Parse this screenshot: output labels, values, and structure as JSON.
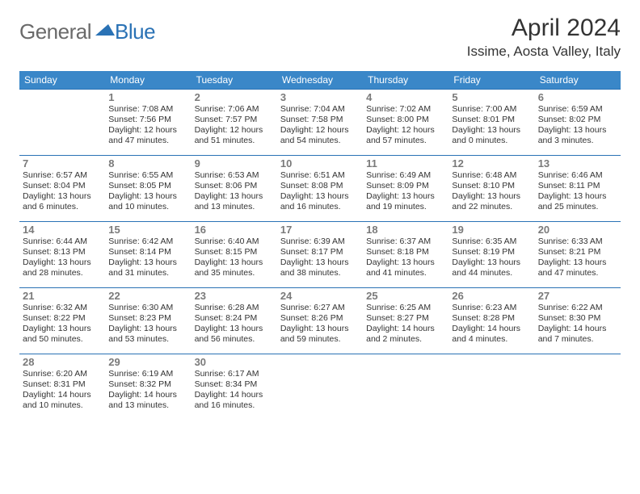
{
  "brand": {
    "part1": "General",
    "part2": "Blue"
  },
  "title": "April 2024",
  "location": "Issime, Aosta Valley, Italy",
  "colors": {
    "header_bg": "#3a87c8",
    "header_text": "#ffffff",
    "rule": "#2a72b5",
    "daynum": "#7a7a7a",
    "body_text": "#333333",
    "logo_gray": "#6a6a6a",
    "logo_blue": "#2a72b5",
    "page_bg": "#ffffff"
  },
  "typography": {
    "title_fontsize": 30,
    "location_fontsize": 17,
    "dayhead_fontsize": 12,
    "daynum_fontsize": 13,
    "cell_fontsize": 10.5
  },
  "day_headers": [
    "Sunday",
    "Monday",
    "Tuesday",
    "Wednesday",
    "Thursday",
    "Friday",
    "Saturday"
  ],
  "weeks": [
    [
      {
        "n": "",
        "sr": "",
        "ss": "",
        "dl": ""
      },
      {
        "n": "1",
        "sr": "7:08 AM",
        "ss": "7:56 PM",
        "dl": "12 hours and 47 minutes."
      },
      {
        "n": "2",
        "sr": "7:06 AM",
        "ss": "7:57 PM",
        "dl": "12 hours and 51 minutes."
      },
      {
        "n": "3",
        "sr": "7:04 AM",
        "ss": "7:58 PM",
        "dl": "12 hours and 54 minutes."
      },
      {
        "n": "4",
        "sr": "7:02 AM",
        "ss": "8:00 PM",
        "dl": "12 hours and 57 minutes."
      },
      {
        "n": "5",
        "sr": "7:00 AM",
        "ss": "8:01 PM",
        "dl": "13 hours and 0 minutes."
      },
      {
        "n": "6",
        "sr": "6:59 AM",
        "ss": "8:02 PM",
        "dl": "13 hours and 3 minutes."
      }
    ],
    [
      {
        "n": "7",
        "sr": "6:57 AM",
        "ss": "8:04 PM",
        "dl": "13 hours and 6 minutes."
      },
      {
        "n": "8",
        "sr": "6:55 AM",
        "ss": "8:05 PM",
        "dl": "13 hours and 10 minutes."
      },
      {
        "n": "9",
        "sr": "6:53 AM",
        "ss": "8:06 PM",
        "dl": "13 hours and 13 minutes."
      },
      {
        "n": "10",
        "sr": "6:51 AM",
        "ss": "8:08 PM",
        "dl": "13 hours and 16 minutes."
      },
      {
        "n": "11",
        "sr": "6:49 AM",
        "ss": "8:09 PM",
        "dl": "13 hours and 19 minutes."
      },
      {
        "n": "12",
        "sr": "6:48 AM",
        "ss": "8:10 PM",
        "dl": "13 hours and 22 minutes."
      },
      {
        "n": "13",
        "sr": "6:46 AM",
        "ss": "8:11 PM",
        "dl": "13 hours and 25 minutes."
      }
    ],
    [
      {
        "n": "14",
        "sr": "6:44 AM",
        "ss": "8:13 PM",
        "dl": "13 hours and 28 minutes."
      },
      {
        "n": "15",
        "sr": "6:42 AM",
        "ss": "8:14 PM",
        "dl": "13 hours and 31 minutes."
      },
      {
        "n": "16",
        "sr": "6:40 AM",
        "ss": "8:15 PM",
        "dl": "13 hours and 35 minutes."
      },
      {
        "n": "17",
        "sr": "6:39 AM",
        "ss": "8:17 PM",
        "dl": "13 hours and 38 minutes."
      },
      {
        "n": "18",
        "sr": "6:37 AM",
        "ss": "8:18 PM",
        "dl": "13 hours and 41 minutes."
      },
      {
        "n": "19",
        "sr": "6:35 AM",
        "ss": "8:19 PM",
        "dl": "13 hours and 44 minutes."
      },
      {
        "n": "20",
        "sr": "6:33 AM",
        "ss": "8:21 PM",
        "dl": "13 hours and 47 minutes."
      }
    ],
    [
      {
        "n": "21",
        "sr": "6:32 AM",
        "ss": "8:22 PM",
        "dl": "13 hours and 50 minutes."
      },
      {
        "n": "22",
        "sr": "6:30 AM",
        "ss": "8:23 PM",
        "dl": "13 hours and 53 minutes."
      },
      {
        "n": "23",
        "sr": "6:28 AM",
        "ss": "8:24 PM",
        "dl": "13 hours and 56 minutes."
      },
      {
        "n": "24",
        "sr": "6:27 AM",
        "ss": "8:26 PM",
        "dl": "13 hours and 59 minutes."
      },
      {
        "n": "25",
        "sr": "6:25 AM",
        "ss": "8:27 PM",
        "dl": "14 hours and 2 minutes."
      },
      {
        "n": "26",
        "sr": "6:23 AM",
        "ss": "8:28 PM",
        "dl": "14 hours and 4 minutes."
      },
      {
        "n": "27",
        "sr": "6:22 AM",
        "ss": "8:30 PM",
        "dl": "14 hours and 7 minutes."
      }
    ],
    [
      {
        "n": "28",
        "sr": "6:20 AM",
        "ss": "8:31 PM",
        "dl": "14 hours and 10 minutes."
      },
      {
        "n": "29",
        "sr": "6:19 AM",
        "ss": "8:32 PM",
        "dl": "14 hours and 13 minutes."
      },
      {
        "n": "30",
        "sr": "6:17 AM",
        "ss": "8:34 PM",
        "dl": "14 hours and 16 minutes."
      },
      {
        "n": "",
        "sr": "",
        "ss": "",
        "dl": ""
      },
      {
        "n": "",
        "sr": "",
        "ss": "",
        "dl": ""
      },
      {
        "n": "",
        "sr": "",
        "ss": "",
        "dl": ""
      },
      {
        "n": "",
        "sr": "",
        "ss": "",
        "dl": ""
      }
    ]
  ],
  "labels": {
    "sunrise": "Sunrise: ",
    "sunset": "Sunset: ",
    "daylight": "Daylight: "
  }
}
